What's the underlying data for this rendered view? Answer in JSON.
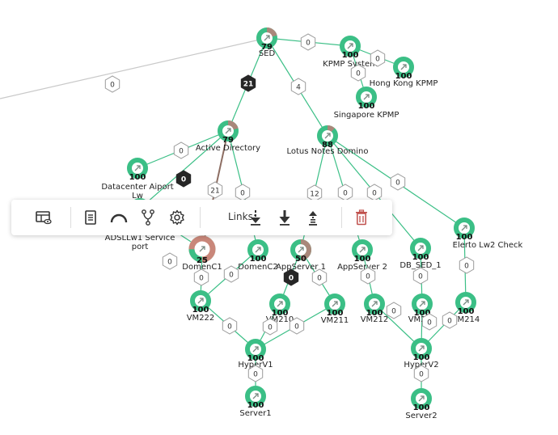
{
  "colors": {
    "node_ok": "#3bbf86",
    "node_mixed": "#a9877a",
    "edge": "#3bbf86",
    "edge_alt": "#8d6e63",
    "badge_dark": "#262626",
    "toolbar_icon": "#333333",
    "trash_icon": "#c0504d"
  },
  "toolbar": {
    "links_label": "Links:",
    "icons": [
      "dashboard-view-icon",
      "report-icon",
      "arc-layout-icon",
      "branch-icon",
      "settings-icon",
      "link-down-dashed-icon",
      "link-down-solid-icon",
      "link-up-dashed-icon",
      "delete-icon"
    ]
  },
  "nodes": [
    {
      "id": "sed",
      "value": "79",
      "label": "SED",
      "status": "mixed"
    },
    {
      "id": "kpmp_system",
      "value": "100",
      "label": "KPMP System",
      "status": "ok"
    },
    {
      "id": "hongkong_kpmp",
      "value": "100",
      "label": "Hong Kong KPMP",
      "status": "ok"
    },
    {
      "id": "singapore_kpmp",
      "value": "100",
      "label": "Singapore KPMP",
      "status": "ok"
    },
    {
      "id": "active_directory",
      "value": "79",
      "label": "Active Directory",
      "status": "mixed"
    },
    {
      "id": "lotus_notes",
      "value": "88",
      "label": "Lotus Notes Domino",
      "status": "mixed"
    },
    {
      "id": "datacenter",
      "value": "100",
      "label": "Datacenter Aiport Lw",
      "status": "ok"
    },
    {
      "id": "adsllw1",
      "value": "",
      "label": "ADSLLw1 Service port",
      "status": "ok"
    },
    {
      "id": "domenc1",
      "value": "25",
      "label": "DomenC1",
      "status": "bad"
    },
    {
      "id": "domenc2",
      "value": "100",
      "label": "DomenC2",
      "status": "ok"
    },
    {
      "id": "appserver1",
      "value": "50",
      "label": "AppServer 1",
      "status": "half"
    },
    {
      "id": "appserver2",
      "value": "100",
      "label": "AppServer 2",
      "status": "ok"
    },
    {
      "id": "db_sed_1",
      "value": "100",
      "label": "DB_SED_1",
      "status": "ok"
    },
    {
      "id": "elerto",
      "value": "100",
      "label": "Elerto Lw2 Check",
      "status": "ok"
    },
    {
      "id": "vm222",
      "value": "100",
      "label": "VM222",
      "status": "ok"
    },
    {
      "id": "vm210",
      "value": "100",
      "label": "VM210",
      "status": "ok"
    },
    {
      "id": "vm211",
      "value": "100",
      "label": "VM211",
      "status": "ok"
    },
    {
      "id": "vm212",
      "value": "100",
      "label": "VM212",
      "status": "ok"
    },
    {
      "id": "vm213",
      "value": "100",
      "label": "VM213",
      "status": "ok"
    },
    {
      "id": "vm214",
      "value": "100",
      "label": "VM214",
      "status": "ok"
    },
    {
      "id": "hyperv1",
      "value": "100",
      "label": "HyperV1",
      "status": "ok"
    },
    {
      "id": "hyperv2",
      "value": "100",
      "label": "HyperV2",
      "status": "ok"
    },
    {
      "id": "server1",
      "value": "100",
      "label": "Server1",
      "status": "ok"
    },
    {
      "id": "server2",
      "value": "100",
      "label": "Server2",
      "status": "ok"
    }
  ],
  "edges": [
    {
      "from": "offscreen_left",
      "to": "sed",
      "badge": "0",
      "dark": false
    },
    {
      "from": "kpmp_system",
      "to": "sed",
      "badge": "0",
      "dark": false
    },
    {
      "from": "hongkong_kpmp",
      "to": "kpmp_system",
      "badge": "0",
      "dark": false
    },
    {
      "from": "singapore_kpmp",
      "to": "kpmp_system",
      "badge": "0",
      "dark": false
    },
    {
      "from": "active_directory",
      "to": "sed",
      "badge": "21",
      "dark": true
    },
    {
      "from": "lotus_notes",
      "to": "sed",
      "badge": "4",
      "dark": false
    },
    {
      "from": "datacenter",
      "to": "active_directory",
      "badge": "0",
      "dark": false
    },
    {
      "from": "adsllw1",
      "to": "active_directory",
      "badge": "0",
      "dark": true
    },
    {
      "from": "domenc1",
      "to": "active_directory",
      "badge": "21",
      "dark": false,
      "alt": true
    },
    {
      "from": "domenc2",
      "to": "active_directory",
      "badge": "0",
      "dark": false
    },
    {
      "from": "appserver1",
      "to": "lotus_notes",
      "badge": "12",
      "dark": false
    },
    {
      "from": "appserver2",
      "to": "lotus_notes",
      "badge": "0",
      "dark": false
    },
    {
      "from": "db_sed_1",
      "to": "lotus_notes",
      "badge": "0",
      "dark": false
    },
    {
      "from": "elerto",
      "to": "lotus_notes",
      "badge": "0",
      "dark": false
    },
    {
      "from": "vm222",
      "to": "domenc1",
      "badge": "0",
      "dark": false
    },
    {
      "from": "vm222",
      "to": "domenc2",
      "badge": "0",
      "dark": false
    },
    {
      "from": "vm210",
      "to": "appserver1",
      "badge": "0",
      "dark": true
    },
    {
      "from": "vm211",
      "to": "appserver1",
      "badge": "0",
      "dark": false
    },
    {
      "from": "vm212",
      "to": "appserver2",
      "badge": "0",
      "dark": false
    },
    {
      "from": "vm213",
      "to": "db_sed_1",
      "badge": "0",
      "dark": false
    },
    {
      "from": "vm214",
      "to": "elerto",
      "badge": "0",
      "dark": false
    },
    {
      "from": "hyperv1",
      "to": "vm222",
      "badge": "0",
      "dark": false
    },
    {
      "from": "hyperv1",
      "to": "vm210",
      "badge": "0",
      "dark": false
    },
    {
      "from": "hyperv1",
      "to": "vm211",
      "badge": "0",
      "dark": false
    },
    {
      "from": "hyperv2",
      "to": "vm212",
      "badge": "0",
      "dark": false
    },
    {
      "from": "hyperv2",
      "to": "vm213",
      "badge": "0",
      "dark": false
    },
    {
      "from": "hyperv2",
      "to": "vm214",
      "badge": "0",
      "dark": false
    },
    {
      "from": "server1",
      "to": "hyperv1",
      "badge": "0",
      "dark": false
    },
    {
      "from": "server2",
      "to": "hyperv2",
      "badge": "0",
      "dark": false
    },
    {
      "from": "adsllw1",
      "to": "domenc1",
      "badge": "0",
      "dark": false
    }
  ]
}
